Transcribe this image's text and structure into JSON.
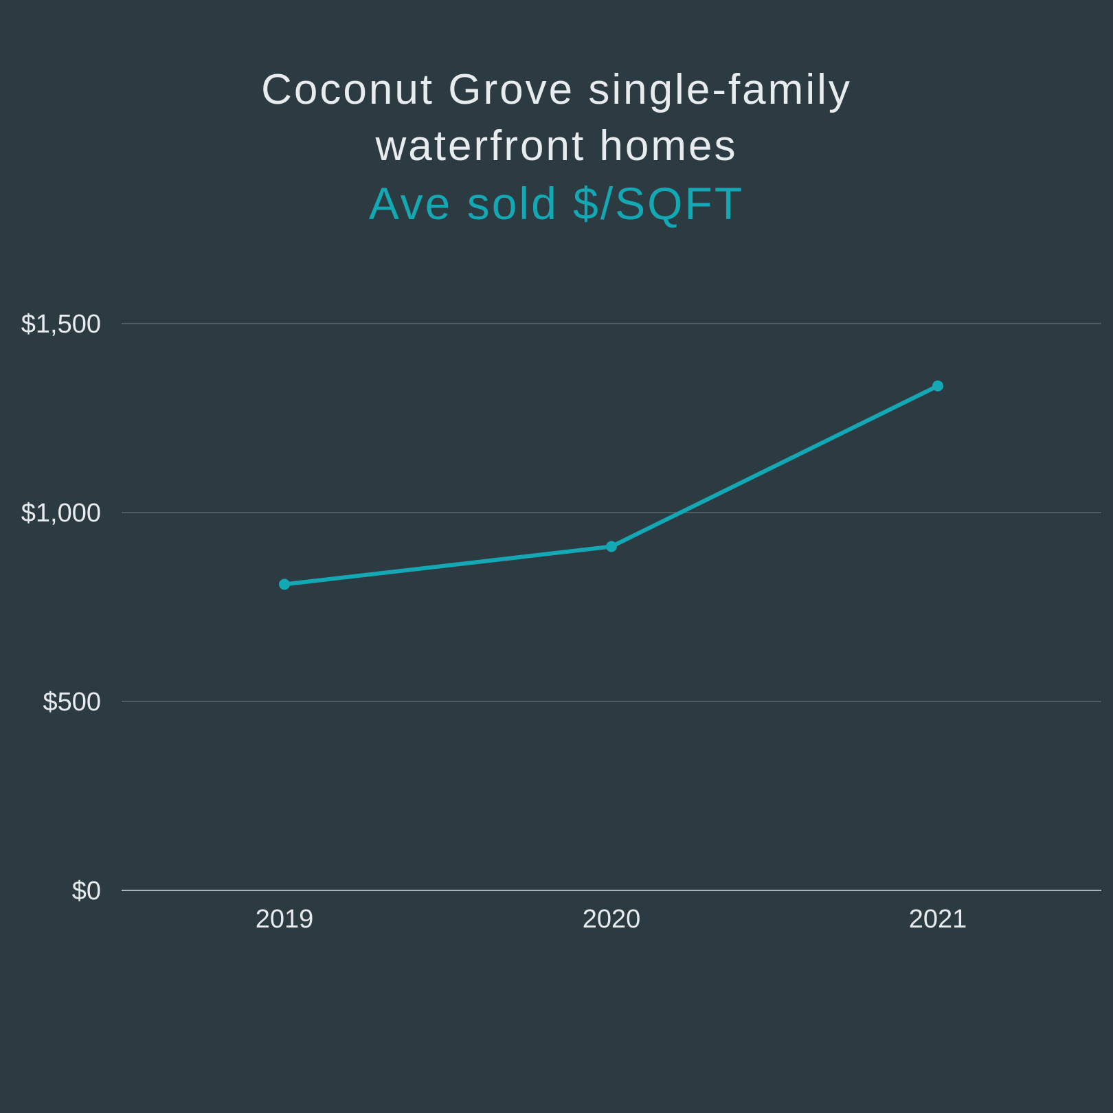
{
  "colors": {
    "background": "#2c3a42",
    "title": "#e8ecef",
    "accent": "#14a8b4",
    "grid": "#5a676e",
    "baseline": "#aab3b8",
    "tick_text": "#e8ecef"
  },
  "chart_data": {
    "type": "line",
    "title": [
      "Coconut Grove single-family",
      "waterfront homes"
    ],
    "subtitle": "Ave sold $/SQFT",
    "xlabel": "",
    "ylabel": "",
    "categories": [
      "2019",
      "2020",
      "2021"
    ],
    "series": [
      {
        "values": [
          810,
          910,
          1335
        ]
      }
    ],
    "ylim": [
      0,
      1500
    ],
    "yticks": [
      0,
      500,
      1000,
      1500
    ],
    "ytick_labels": [
      "$0",
      "$500",
      "$1,000",
      "$1,500"
    ],
    "grid": true,
    "legend": "none"
  }
}
